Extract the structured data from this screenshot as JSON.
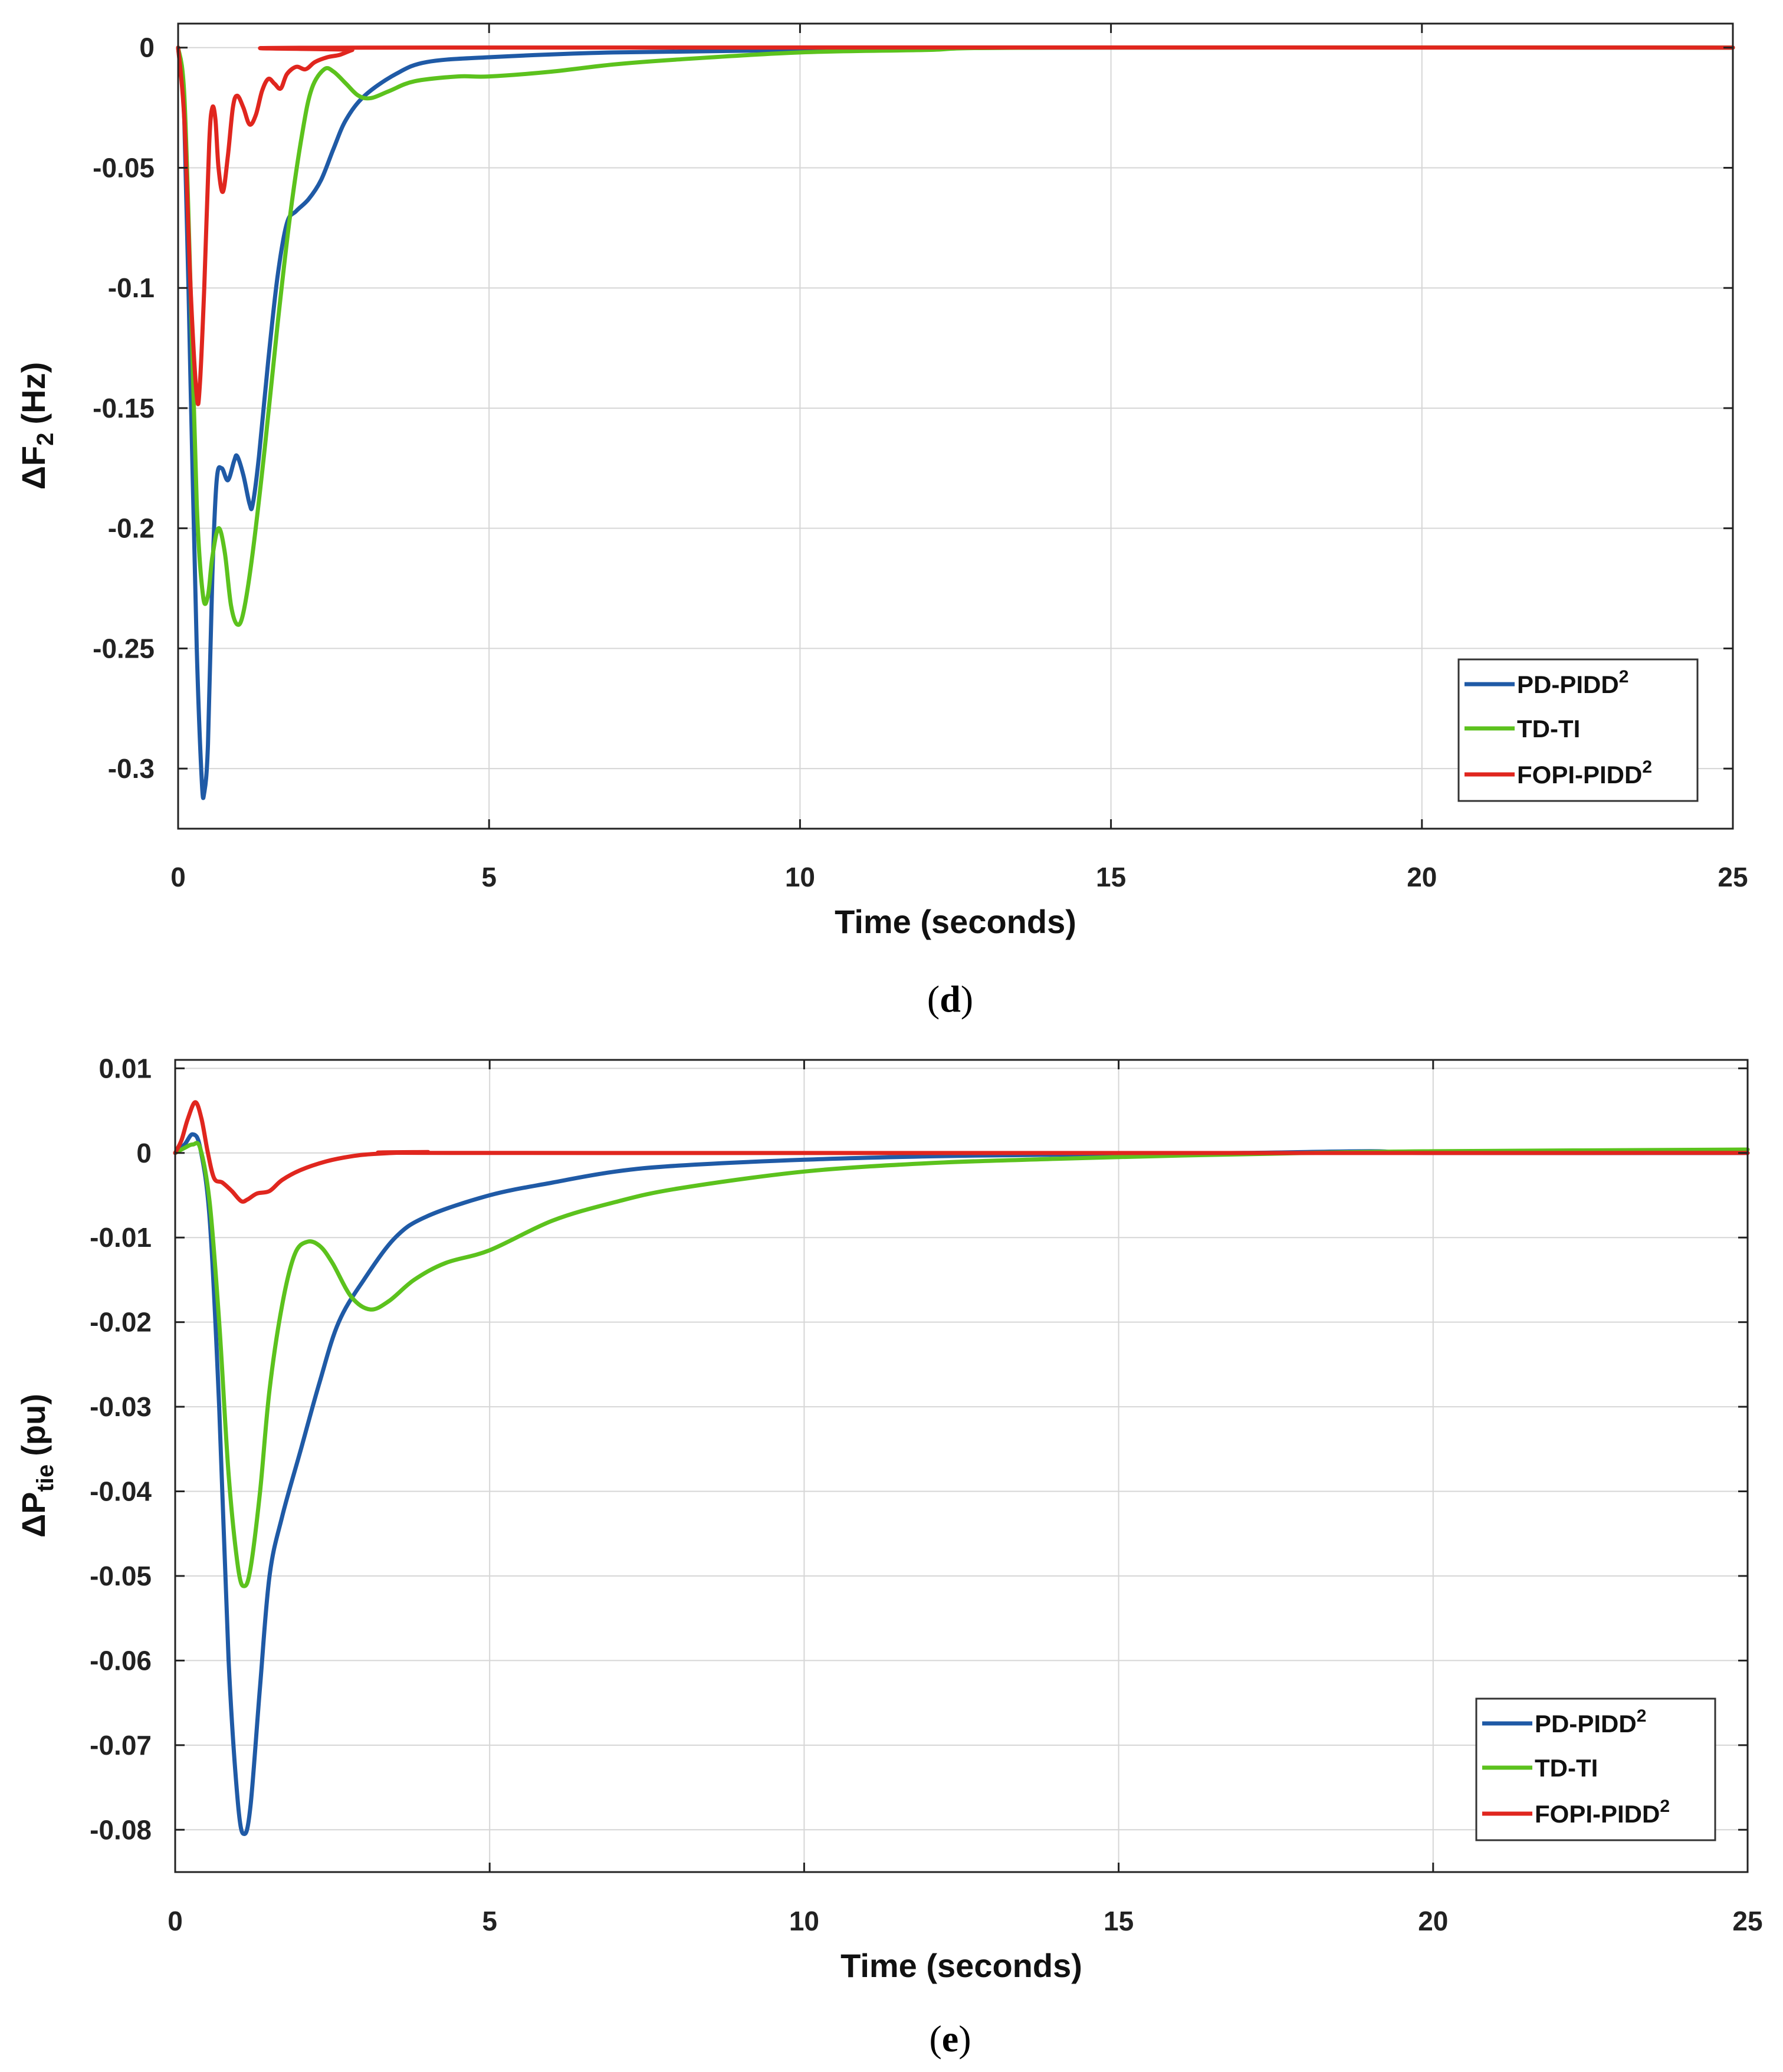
{
  "chart_data": [
    {
      "id": "d",
      "type": "line",
      "caption_letter": "d",
      "caption_open": "(",
      "caption_close": ")",
      "xlabel": "Time (seconds)",
      "ylabel_main": "ΔF",
      "ylabel_sub": "2",
      "ylabel_unit": "(Hz)",
      "xlim": [
        0,
        25
      ],
      "ylim": [
        -0.325,
        0.01
      ],
      "xticks": [
        0,
        5,
        10,
        15,
        20,
        25
      ],
      "xtick_labels": [
        "0",
        "5",
        "10",
        "15",
        "20",
        "25"
      ],
      "yticks": [
        0,
        -0.05,
        -0.1,
        -0.15,
        -0.2,
        -0.25,
        -0.3
      ],
      "ytick_labels": [
        "0",
        "-0.05",
        "-0.1",
        "-0.15",
        "-0.2",
        "-0.25",
        "-0.3"
      ],
      "grid": true,
      "legend_position": "bottom-right",
      "series": [
        {
          "name": "PD-PIDD",
          "sup": "2",
          "color": "#1f5aa6",
          "points": [
            [
              0,
              0
            ],
            [
              0.1,
              -0.03
            ],
            [
              0.2,
              -0.14
            ],
            [
              0.3,
              -0.25
            ],
            [
              0.38,
              -0.305
            ],
            [
              0.42,
              -0.31
            ],
            [
              0.48,
              -0.29
            ],
            [
              0.55,
              -0.22
            ],
            [
              0.62,
              -0.18
            ],
            [
              0.7,
              -0.175
            ],
            [
              0.8,
              -0.18
            ],
            [
              0.9,
              -0.172
            ],
            [
              0.95,
              -0.17
            ],
            [
              1.05,
              -0.178
            ],
            [
              1.15,
              -0.19
            ],
            [
              1.2,
              -0.19
            ],
            [
              1.3,
              -0.17
            ],
            [
              1.45,
              -0.13
            ],
            [
              1.6,
              -0.095
            ],
            [
              1.75,
              -0.073
            ],
            [
              1.9,
              -0.068
            ],
            [
              2.1,
              -0.063
            ],
            [
              2.3,
              -0.055
            ],
            [
              2.5,
              -0.042
            ],
            [
              2.7,
              -0.03
            ],
            [
              3.0,
              -0.02
            ],
            [
              3.5,
              -0.011
            ],
            [
              4.0,
              -0.006
            ],
            [
              5.0,
              -0.004
            ],
            [
              7.0,
              -0.002
            ],
            [
              10.0,
              -0.001
            ],
            [
              14.0,
              0
            ],
            [
              25.0,
              0
            ]
          ]
        },
        {
          "name": "TD-TI",
          "sup": "",
          "color": "#5cc21d",
          "points": [
            [
              0,
              0
            ],
            [
              0.1,
              -0.02
            ],
            [
              0.2,
              -0.1
            ],
            [
              0.3,
              -0.19
            ],
            [
              0.4,
              -0.228
            ],
            [
              0.48,
              -0.228
            ],
            [
              0.55,
              -0.212
            ],
            [
              0.65,
              -0.2
            ],
            [
              0.75,
              -0.21
            ],
            [
              0.85,
              -0.232
            ],
            [
              0.95,
              -0.24
            ],
            [
              1.05,
              -0.235
            ],
            [
              1.2,
              -0.21
            ],
            [
              1.4,
              -0.165
            ],
            [
              1.6,
              -0.115
            ],
            [
              1.8,
              -0.07
            ],
            [
              2.0,
              -0.035
            ],
            [
              2.15,
              -0.017
            ],
            [
              2.35,
              -0.009
            ],
            [
              2.5,
              -0.01
            ],
            [
              2.7,
              -0.015
            ],
            [
              2.9,
              -0.02
            ],
            [
              3.1,
              -0.021
            ],
            [
              3.4,
              -0.018
            ],
            [
              3.8,
              -0.014
            ],
            [
              4.5,
              -0.012
            ],
            [
              5.0,
              -0.012
            ],
            [
              6.0,
              -0.01
            ],
            [
              7.0,
              -0.007
            ],
            [
              8.0,
              -0.005
            ],
            [
              10.0,
              -0.002
            ],
            [
              12.0,
              -0.001
            ],
            [
              14.0,
              0
            ],
            [
              25.0,
              0
            ]
          ]
        },
        {
          "name": "FOPI-PIDD",
          "sup": "2",
          "color": "#e0261e",
          "points": [
            [
              0,
              0
            ],
            [
              0.1,
              -0.03
            ],
            [
              0.2,
              -0.1
            ],
            [
              0.3,
              -0.145
            ],
            [
              0.35,
              -0.14
            ],
            [
              0.42,
              -0.1
            ],
            [
              0.5,
              -0.04
            ],
            [
              0.55,
              -0.025
            ],
            [
              0.6,
              -0.03
            ],
            [
              0.65,
              -0.05
            ],
            [
              0.72,
              -0.06
            ],
            [
              0.8,
              -0.045
            ],
            [
              0.88,
              -0.025
            ],
            [
              0.95,
              -0.02
            ],
            [
              1.05,
              -0.025
            ],
            [
              1.15,
              -0.032
            ],
            [
              1.25,
              -0.028
            ],
            [
              1.35,
              -0.018
            ],
            [
              1.45,
              -0.013
            ],
            [
              1.55,
              -0.015
            ],
            [
              1.65,
              -0.017
            ],
            [
              1.75,
              -0.011
            ],
            [
              1.9,
              -0.008
            ],
            [
              2.05,
              -0.009
            ],
            [
              2.2,
              -0.006
            ],
            [
              2.4,
              -0.004
            ],
            [
              2.6,
              -0.003
            ],
            [
              2.8,
              -0.001
            ],
            [
              3.0,
              0
            ],
            [
              25.0,
              0
            ]
          ]
        }
      ]
    },
    {
      "id": "e",
      "type": "line",
      "caption_letter": "e",
      "caption_open": "(",
      "caption_close": ")",
      "xlabel": "Time (seconds)",
      "ylabel_main": "ΔP",
      "ylabel_sub": "tie",
      "ylabel_unit": "(pu)",
      "xlim": [
        0,
        25
      ],
      "ylim": [
        -0.085,
        0.011
      ],
      "xticks": [
        0,
        5,
        10,
        15,
        20,
        25
      ],
      "xtick_labels": [
        "0",
        "5",
        "10",
        "15",
        "20",
        "25"
      ],
      "yticks": [
        0.01,
        0,
        -0.01,
        -0.02,
        -0.03,
        -0.04,
        -0.05,
        -0.06,
        -0.07,
        -0.08
      ],
      "ytick_labels": [
        "0.01",
        "0",
        "-0.01",
        "-0.02",
        "-0.03",
        "-0.04",
        "-0.05",
        "-0.06",
        "-0.07",
        "-0.08"
      ],
      "grid": true,
      "legend_position": "bottom-right",
      "series": [
        {
          "name": "PD-PIDD",
          "sup": "2",
          "color": "#1f5aa6",
          "points": [
            [
              0,
              0
            ],
            [
              0.15,
              0.001
            ],
            [
              0.28,
              0.0022
            ],
            [
              0.4,
              0.0005
            ],
            [
              0.55,
              -0.008
            ],
            [
              0.7,
              -0.03
            ],
            [
              0.85,
              -0.06
            ],
            [
              1.0,
              -0.077
            ],
            [
              1.1,
              -0.0805
            ],
            [
              1.2,
              -0.077
            ],
            [
              1.35,
              -0.063
            ],
            [
              1.5,
              -0.05
            ],
            [
              1.7,
              -0.043
            ],
            [
              2.0,
              -0.035
            ],
            [
              2.3,
              -0.027
            ],
            [
              2.6,
              -0.02
            ],
            [
              3.0,
              -0.015
            ],
            [
              3.5,
              -0.01
            ],
            [
              4.0,
              -0.0075
            ],
            [
              5.0,
              -0.005
            ],
            [
              6.0,
              -0.0035
            ],
            [
              7.0,
              -0.0022
            ],
            [
              8.0,
              -0.0015
            ],
            [
              10.0,
              -0.0008
            ],
            [
              12.0,
              -0.0004
            ],
            [
              14.0,
              -0.0002
            ],
            [
              17.0,
              0
            ],
            [
              19.0,
              0.0002
            ],
            [
              20.0,
              0
            ],
            [
              25.0,
              0
            ]
          ]
        },
        {
          "name": "TD-TI",
          "sup": "",
          "color": "#5cc21d",
          "points": [
            [
              0,
              0
            ],
            [
              0.15,
              0.0006
            ],
            [
              0.28,
              0.001
            ],
            [
              0.4,
              0.0005
            ],
            [
              0.55,
              -0.006
            ],
            [
              0.7,
              -0.02
            ],
            [
              0.85,
              -0.038
            ],
            [
              1.0,
              -0.049
            ],
            [
              1.1,
              -0.0512
            ],
            [
              1.2,
              -0.049
            ],
            [
              1.35,
              -0.04
            ],
            [
              1.5,
              -0.028
            ],
            [
              1.7,
              -0.018
            ],
            [
              1.9,
              -0.012
            ],
            [
              2.1,
              -0.0105
            ],
            [
              2.3,
              -0.011
            ],
            [
              2.5,
              -0.013
            ],
            [
              2.8,
              -0.017
            ],
            [
              3.1,
              -0.0185
            ],
            [
              3.4,
              -0.0175
            ],
            [
              3.8,
              -0.015
            ],
            [
              4.3,
              -0.013
            ],
            [
              5.0,
              -0.0115
            ],
            [
              6.0,
              -0.008
            ],
            [
              7.0,
              -0.0058
            ],
            [
              8.0,
              -0.0042
            ],
            [
              10.0,
              -0.0022
            ],
            [
              12.0,
              -0.0012
            ],
            [
              14.0,
              -0.0007
            ],
            [
              16.0,
              -0.0003
            ],
            [
              18.0,
              0
            ],
            [
              20.0,
              0.0002
            ],
            [
              25.0,
              0.0004
            ]
          ]
        },
        {
          "name": "FOPI-PIDD",
          "sup": "2",
          "color": "#e0261e",
          "points": [
            [
              0,
              0
            ],
            [
              0.1,
              0.0015
            ],
            [
              0.2,
              0.004
            ],
            [
              0.32,
              0.006
            ],
            [
              0.42,
              0.004
            ],
            [
              0.52,
              0
            ],
            [
              0.62,
              -0.003
            ],
            [
              0.75,
              -0.0035
            ],
            [
              0.9,
              -0.0045
            ],
            [
              1.05,
              -0.0057
            ],
            [
              1.15,
              -0.0055
            ],
            [
              1.3,
              -0.0048
            ],
            [
              1.5,
              -0.0045
            ],
            [
              1.7,
              -0.0032
            ],
            [
              2.0,
              -0.002
            ],
            [
              2.4,
              -0.001
            ],
            [
              2.8,
              -0.0004
            ],
            [
              3.2,
              -0.0001
            ],
            [
              4.0,
              0.0001
            ],
            [
              5.0,
              0
            ],
            [
              25.0,
              0
            ]
          ]
        }
      ]
    }
  ]
}
